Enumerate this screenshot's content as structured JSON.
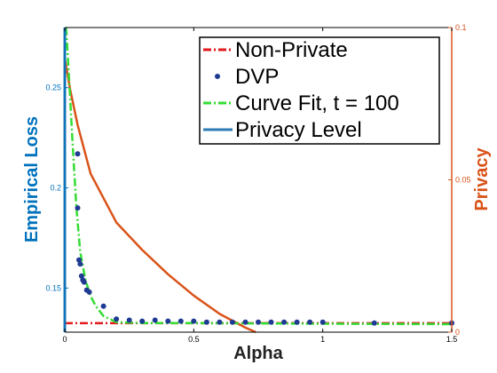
{
  "colors": {
    "left_axis": "#0072BD",
    "right_axis": "#D95319",
    "non_private": "#E31A1C",
    "dvp": "#1F3A93",
    "curve_fit": "#33DD33",
    "privacy_level": "#2C7BB6",
    "privacy_curve": "#D95319"
  },
  "chart_data": {
    "type": "line",
    "xlabel": "Alpha",
    "ylabel_left": "Empirical Loss",
    "ylabel_right": "Privacy",
    "xlim": [
      0,
      1.5
    ],
    "ylim_left": [
      0.128,
      0.28
    ],
    "ylim_right": [
      0,
      0.1
    ],
    "x_ticks": [
      "0",
      "0.5",
      "1",
      "1.5"
    ],
    "y_ticks_left": [
      "0.15",
      "0.2",
      "0.25"
    ],
    "y_ticks_right": [
      "0",
      "0.05",
      "0.1"
    ],
    "legend_position": "top-right",
    "series": [
      {
        "name": "Non-Private",
        "axis": "left",
        "style": "dash-dot",
        "x": [
          0,
          1.5
        ],
        "y": [
          0.1325,
          0.1325
        ]
      },
      {
        "name": "DVP",
        "axis": "left",
        "style": "markers",
        "x": [
          0.05,
          0.05,
          0.055,
          0.06,
          0.065,
          0.07,
          0.075,
          0.085,
          0.095,
          0.15,
          0.2,
          0.25,
          0.3,
          0.35,
          0.4,
          0.45,
          0.5,
          0.55,
          0.6,
          0.65,
          0.7,
          0.75,
          0.8,
          0.85,
          0.9,
          0.95,
          1.0,
          1.2,
          1.5
        ],
        "y": [
          0.217,
          0.19,
          0.164,
          0.162,
          0.156,
          0.154,
          0.153,
          0.149,
          0.148,
          0.141,
          0.1345,
          0.134,
          0.1335,
          0.134,
          0.1335,
          0.1335,
          0.1335,
          0.133,
          0.133,
          0.133,
          0.133,
          0.133,
          0.133,
          0.133,
          0.133,
          0.133,
          0.133,
          0.1325,
          0.1325
        ]
      },
      {
        "name": "Curve Fit, t = 100",
        "axis": "left",
        "style": "dash-dot",
        "x": [
          0.005,
          0.015,
          0.03,
          0.045,
          0.06,
          0.08,
          0.1,
          0.12,
          0.15,
          0.2,
          0.3,
          0.5,
          1.0,
          1.5
        ],
        "y": [
          0.28,
          0.258,
          0.223,
          0.19,
          0.168,
          0.154,
          0.146,
          0.141,
          0.136,
          0.133,
          0.1325,
          0.1325,
          0.1322,
          0.132
        ]
      },
      {
        "name": "Privacy Level",
        "axis": "left",
        "style": "solid",
        "x": [
          0,
          0
        ],
        "y": [
          0.128,
          0.28
        ]
      },
      {
        "name": "",
        "axis": "right",
        "style": "solid",
        "x": [
          0.0,
          0.02,
          0.05,
          0.1,
          0.2,
          0.3,
          0.4,
          0.5,
          0.6,
          0.7,
          0.74
        ],
        "y": [
          0.09,
          0.08,
          0.068,
          0.052,
          0.036,
          0.027,
          0.019,
          0.012,
          0.006,
          0.0015,
          0.0
        ]
      }
    ]
  }
}
